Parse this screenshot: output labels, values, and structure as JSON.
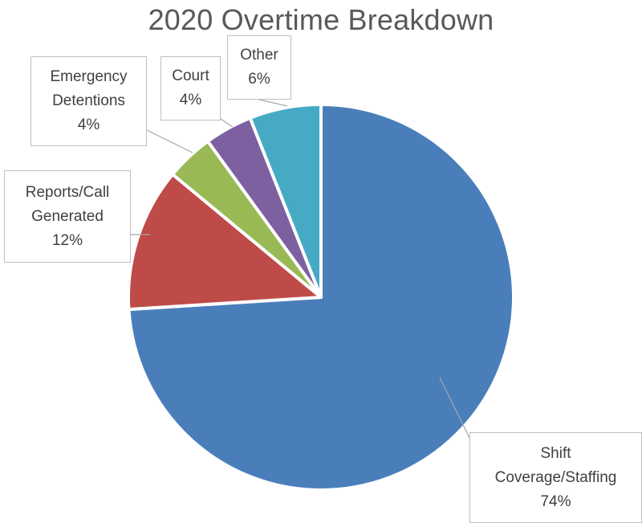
{
  "chart_data": {
    "type": "pie",
    "title": "2020 Overtime Breakdown",
    "start_angle_deg": 0,
    "direction": "clockwise",
    "legend": "none",
    "slices": [
      {
        "label_lines": [
          "Shift",
          "Coverage/Staffing"
        ],
        "value": 74,
        "value_label": "74%",
        "color": "#4a7ebb"
      },
      {
        "label_lines": [
          "Reports/Call",
          "Generated"
        ],
        "value": 12,
        "value_label": "12%",
        "color": "#be4b48"
      },
      {
        "label_lines": [
          "Emergency",
          "Detentions"
        ],
        "value": 4,
        "value_label": "4%",
        "color": "#98b954"
      },
      {
        "label_lines": [
          "Court"
        ],
        "value": 4,
        "value_label": "4%",
        "color": "#7d60a0"
      },
      {
        "label_lines": [
          "Other"
        ],
        "value": 6,
        "value_label": "6%",
        "color": "#46aac5"
      }
    ]
  }
}
